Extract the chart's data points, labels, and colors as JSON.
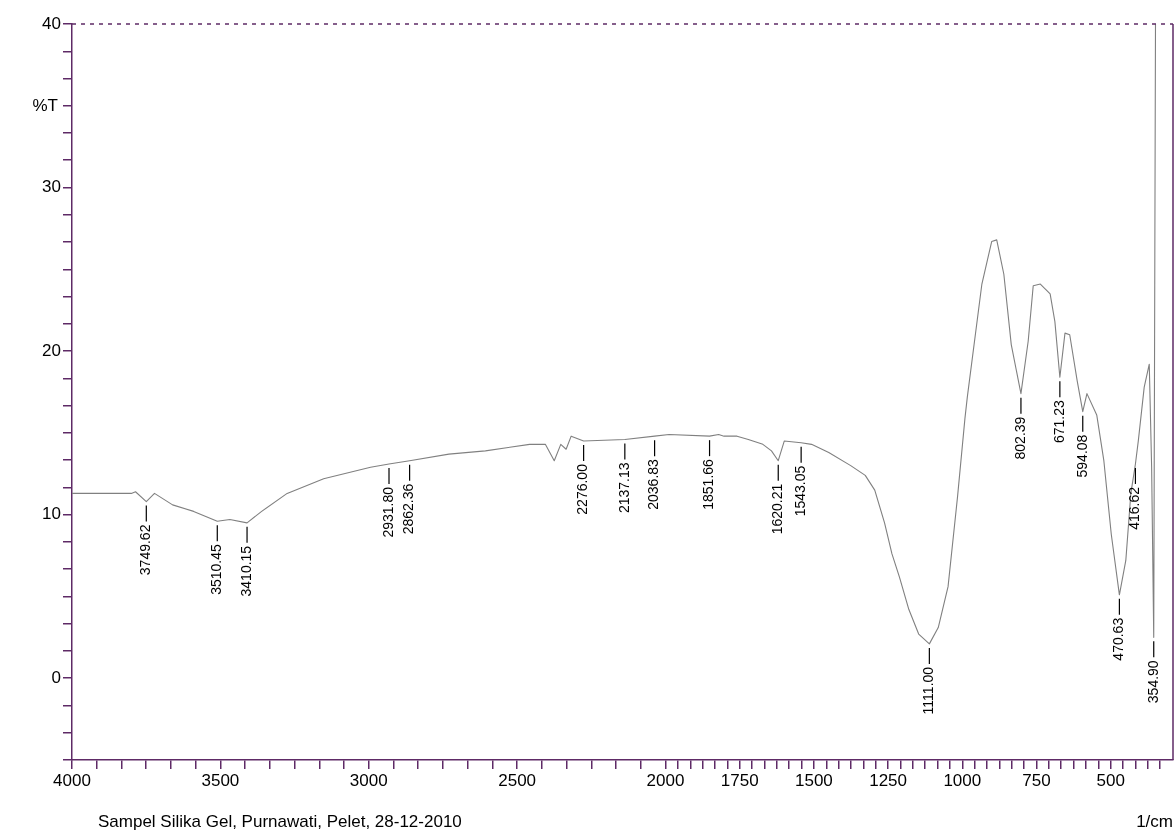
{
  "chart_data": {
    "type": "line",
    "xlabel": "1/cm",
    "ylabel": "%T",
    "color": "#808080",
    "grid": false,
    "legend": false,
    "xlim": [
      4000,
      290
    ],
    "ylim": [
      -5,
      40
    ],
    "xticks": [
      4000,
      {
        "value": 3916.67,
        "label": null
      },
      {
        "value": 3833.33,
        "label": null
      },
      {
        "value": 3750,
        "label": null
      },
      {
        "value": 3666.67,
        "label": null
      },
      {
        "value": 3583.33,
        "label": null
      },
      3500,
      {
        "value": 3416.67,
        "label": null
      },
      {
        "value": 3333.33,
        "label": null
      },
      {
        "value": 3250,
        "label": null
      },
      {
        "value": 3166.67,
        "label": null
      },
      {
        "value": 3083.33,
        "label": null
      },
      3000,
      {
        "value": 2916.67,
        "label": null
      },
      {
        "value": 2833.33,
        "label": null
      },
      {
        "value": 2750,
        "label": null
      },
      {
        "value": 2666.67,
        "label": null
      },
      {
        "value": 2583.33,
        "label": null
      },
      2500,
      {
        "value": 2416.67,
        "label": null
      },
      {
        "value": 2333.33,
        "label": null
      },
      {
        "value": 2250,
        "label": null
      },
      {
        "value": 2166.67,
        "label": null
      },
      {
        "value": 2083.33,
        "label": null
      },
      2000,
      {
        "value": 1958.33,
        "label": null
      },
      {
        "value": 1916.67,
        "label": null
      },
      {
        "value": 1875,
        "label": null
      },
      {
        "value": 1833.33,
        "label": null
      },
      {
        "value": 1791.67,
        "label": null
      },
      1750,
      {
        "value": 1708.33,
        "label": null
      },
      {
        "value": 1666.67,
        "label": null
      },
      {
        "value": 1625,
        "label": null
      },
      {
        "value": 1583.33,
        "label": null
      },
      {
        "value": 1541.67,
        "label": null
      },
      1500,
      {
        "value": 1458.33,
        "label": null
      },
      {
        "value": 1416.67,
        "label": null
      },
      {
        "value": 1375,
        "label": null
      },
      {
        "value": 1333.33,
        "label": null
      },
      {
        "value": 1291.67,
        "label": null
      },
      1250,
      {
        "value": 1208.33,
        "label": null
      },
      {
        "value": 1166.67,
        "label": null
      },
      {
        "value": 1125,
        "label": null
      },
      {
        "value": 1083.33,
        "label": null
      },
      {
        "value": 1041.67,
        "label": null
      },
      1000,
      {
        "value": 958.33,
        "label": null
      },
      {
        "value": 916.67,
        "label": null
      },
      {
        "value": 875,
        "label": null
      },
      {
        "value": 833.33,
        "label": null
      },
      {
        "value": 791.67,
        "label": null
      },
      750,
      {
        "value": 708.33,
        "label": null
      },
      {
        "value": 666.67,
        "label": null
      },
      {
        "value": 625,
        "label": null
      },
      {
        "value": 583.33,
        "label": null
      },
      {
        "value": 541.67,
        "label": null
      },
      500,
      {
        "value": 458.33,
        "label": null
      },
      {
        "value": 416.67,
        "label": null
      },
      {
        "value": 375,
        "label": null
      },
      {
        "value": 333.33,
        "label": null
      }
    ],
    "yticks": [
      40,
      {
        "value": 38.33,
        "label": null
      },
      {
        "value": 36.67,
        "label": null
      },
      {
        "value": 35,
        "label": null
      },
      {
        "value": 33.33,
        "label": null
      },
      {
        "value": 31.67,
        "label": null
      },
      30,
      {
        "value": 28.33,
        "label": null
      },
      {
        "value": 26.67,
        "label": null
      },
      {
        "value": 25,
        "label": null
      },
      {
        "value": 23.33,
        "label": null
      },
      {
        "value": 21.67,
        "label": null
      },
      20,
      {
        "value": 18.33,
        "label": null
      },
      {
        "value": 16.67,
        "label": null
      },
      {
        "value": 15,
        "label": null
      },
      {
        "value": 13.33,
        "label": null
      },
      {
        "value": 11.67,
        "label": null
      },
      10,
      {
        "value": 8.33,
        "label": null
      },
      {
        "value": 6.67,
        "label": null
      },
      {
        "value": 5,
        "label": null
      },
      {
        "value": 3.33,
        "label": null
      },
      {
        "value": 1.67,
        "label": null
      },
      0,
      {
        "value": -1.67,
        "label": null
      },
      {
        "value": -3.33,
        "label": null
      },
      {
        "value": -5,
        "label": null
      }
    ],
    "x": [
      4000,
      3800,
      3786,
      3749.62,
      3722,
      3661,
      3590,
      3510.45,
      3468,
      3410.15,
      3361,
      3275,
      3152,
      2994,
      2931.8,
      2862.36,
      2730,
      2607,
      2458,
      2405,
      2375,
      2353,
      2335,
      2318,
      2276,
      2137.13,
      2036.83,
      1988,
      1851.66,
      1821,
      1803,
      1759,
      1721,
      1672,
      1643,
      1620.21,
      1600,
      1543.05,
      1508,
      1450,
      1376,
      1327,
      1295,
      1262,
      1237,
      1212,
      1180,
      1147,
      1111,
      1081,
      1048,
      1016,
      991,
      983,
      934,
      901,
      884,
      860,
      835,
      802.39,
      778,
      761,
      737,
      704,
      688,
      671.23,
      654,
      638,
      613,
      594.08,
      580,
      547,
      523,
      498,
      470.63,
      449,
      432,
      416.62,
      407,
      387,
      370,
      362,
      354.9,
      349
    ],
    "values": [
      11.3,
      11.3,
      11.4,
      10.8,
      11.3,
      10.6,
      10.2,
      9.6,
      9.7,
      9.5,
      10.2,
      11.3,
      12.2,
      12.9,
      13.1,
      13.3,
      13.7,
      13.9,
      14.3,
      14.3,
      13.3,
      14.3,
      14.0,
      14.8,
      14.5,
      14.6,
      14.8,
      14.9,
      14.8,
      14.9,
      14.8,
      14.8,
      14.6,
      14.3,
      13.9,
      13.3,
      14.5,
      14.4,
      14.3,
      13.8,
      13.0,
      12.4,
      11.5,
      9.5,
      7.6,
      6.2,
      4.2,
      2.7,
      2.1,
      3.1,
      5.6,
      11.1,
      15.9,
      17.2,
      24.1,
      26.7,
      26.8,
      24.7,
      20.4,
      17.4,
      20.6,
      24.0,
      24.1,
      23.5,
      21.8,
      18.4,
      21.1,
      21.0,
      18.2,
      16.3,
      17.4,
      16.1,
      13.3,
      8.8,
      5.1,
      7.2,
      11.3,
      13.1,
      14.5,
      17.8,
      19.2,
      12.9,
      2.5,
      40
    ],
    "annotations": [
      {
        "text": "3749.62",
        "x": 3749.62,
        "y": 10.8
      },
      {
        "text": "3510.45",
        "x": 3510.45,
        "y": 9.6
      },
      {
        "text": "3410.15",
        "x": 3410.15,
        "y": 9.5
      },
      {
        "text": "2931.80",
        "x": 2931.8,
        "y": 13.1
      },
      {
        "text": "2862.36",
        "x": 2862.36,
        "y": 13.3
      },
      {
        "text": "2276.00",
        "x": 2276,
        "y": 14.5
      },
      {
        "text": "2137.13",
        "x": 2137.13,
        "y": 14.6
      },
      {
        "text": "2036.83",
        "x": 2036.83,
        "y": 14.8
      },
      {
        "text": "1851.66",
        "x": 1851.66,
        "y": 14.8
      },
      {
        "text": "1620.21",
        "x": 1620.21,
        "y": 13.3
      },
      {
        "text": "1543.05",
        "x": 1543.05,
        "y": 14.4
      },
      {
        "text": "1111.00",
        "x": 1111,
        "y": 2.1
      },
      {
        "text": "802.39",
        "x": 802.39,
        "y": 17.4
      },
      {
        "text": "671.23",
        "x": 671.23,
        "y": 18.4
      },
      {
        "text": "594.08",
        "x": 594.08,
        "y": 16.3
      },
      {
        "text": "470.63",
        "x": 470.63,
        "y": 5.1
      },
      {
        "text": "416.62",
        "x": 416.62,
        "y": 13.1
      },
      {
        "text": "354.90",
        "x": 354.9,
        "y": 2.5
      },
      "Sampel Silika Gel, Purnawati, Pelet, 28-12-2010"
    ]
  }
}
